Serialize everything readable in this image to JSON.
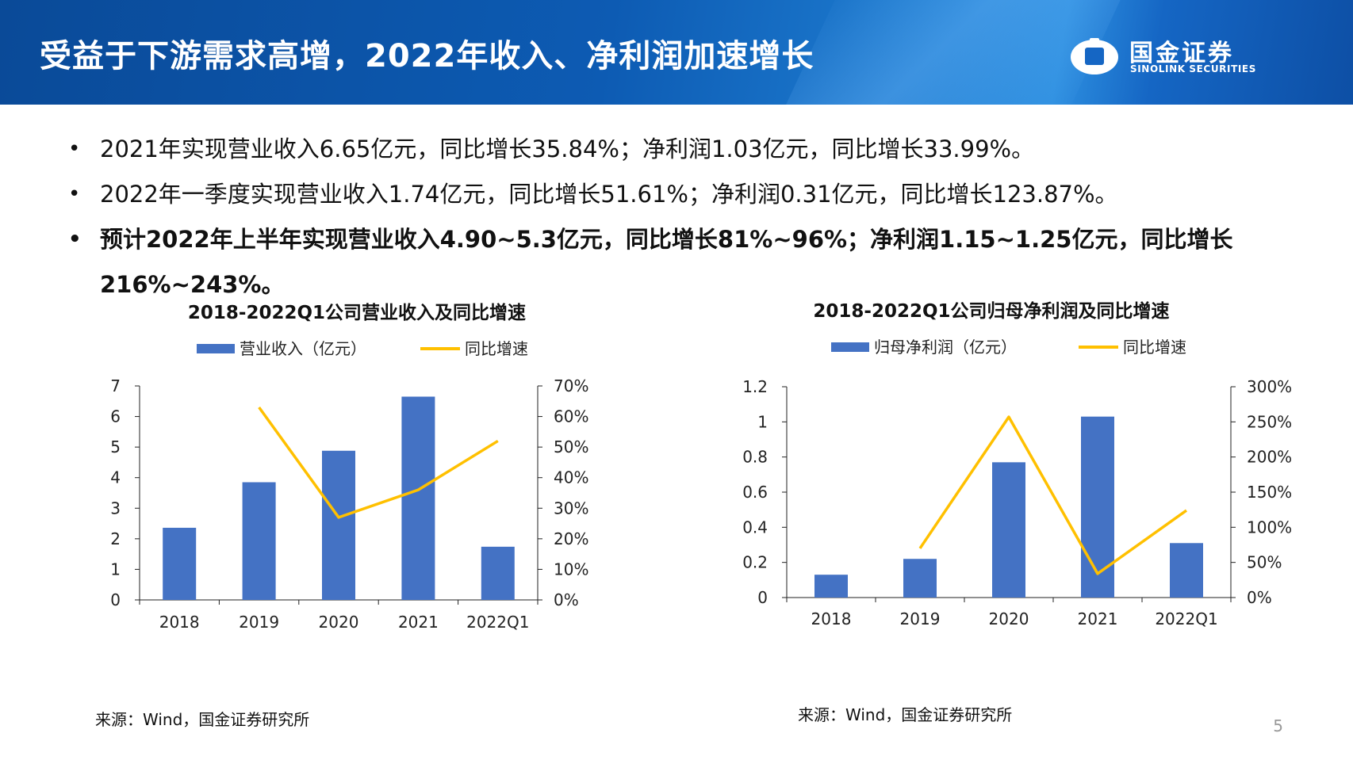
{
  "header": {
    "title": "受益于下游需求高增，2022年收入、净利润加速增长",
    "logo_cn": "国金证券",
    "logo_en": "SINOLINK SECURITIES",
    "colors": {
      "bg": "#0d5bb3",
      "text": "#ffffff"
    }
  },
  "bullets": [
    {
      "text": "2021年实现营业收入6.65亿元，同比增长35.84%；净利润1.03亿元，同比增长33.99%。",
      "bold": false
    },
    {
      "text": "2022年一季度实现营业收入1.74亿元，同比增长51.61%；净利润0.31亿元，同比增长123.87%。",
      "bold": false
    },
    {
      "text": "预计2022年上半年实现营业收入4.90~5.3亿元，同比增长81%~96%；净利润1.15~1.25亿元，同比增长216%~243%。",
      "bold": true
    }
  ],
  "colors": {
    "bar": "#4472c4",
    "line": "#ffc000",
    "axis": "#222222"
  },
  "chart_data": [
    {
      "type": "bar",
      "title": "2018-2022Q1公司营业收入及同比增速",
      "categories": [
        "2018",
        "2019",
        "2020",
        "2021",
        "2022Q1"
      ],
      "series": [
        {
          "name": "营业收入（亿元）",
          "type": "bar",
          "axis": "left",
          "values": [
            2.36,
            3.85,
            4.88,
            6.65,
            1.74
          ]
        },
        {
          "name": "同比增速",
          "type": "line",
          "axis": "right",
          "values": [
            null,
            0.63,
            0.27,
            0.36,
            0.52
          ]
        }
      ],
      "ylim": [
        0,
        7
      ],
      "yticks": [
        0,
        1,
        2,
        3,
        4,
        5,
        6,
        7
      ],
      "ytick_labels": [
        "0",
        "1",
        "2",
        "3",
        "4",
        "5",
        "6",
        "7"
      ],
      "y2lim": [
        0,
        0.7
      ],
      "y2ticks": [
        0,
        0.1,
        0.2,
        0.3,
        0.4,
        0.5,
        0.6,
        0.7
      ],
      "y2tick_labels": [
        "0%",
        "10%",
        "20%",
        "30%",
        "40%",
        "50%",
        "60%",
        "70%"
      ],
      "legend_position": "top",
      "source": "来源：Wind，国金证券研究所"
    },
    {
      "type": "bar",
      "title": "2018-2022Q1公司归母净利润及同比增速",
      "categories": [
        "2018",
        "2019",
        "2020",
        "2021",
        "2022Q1"
      ],
      "series": [
        {
          "name": "归母净利润（亿元）",
          "type": "bar",
          "axis": "left",
          "values": [
            0.13,
            0.22,
            0.77,
            1.03,
            0.31
          ]
        },
        {
          "name": "同比增速",
          "type": "line",
          "axis": "right",
          "values": [
            null,
            0.7,
            2.57,
            0.34,
            1.24
          ]
        }
      ],
      "ylim": [
        0,
        1.2
      ],
      "yticks": [
        0,
        0.2,
        0.4,
        0.6,
        0.8,
        1,
        1.2
      ],
      "ytick_labels": [
        "0",
        "0.2",
        "0.4",
        "0.6",
        "0.8",
        "1",
        "1.2"
      ],
      "y2lim": [
        0,
        3
      ],
      "y2ticks": [
        0,
        0.5,
        1,
        1.5,
        2,
        2.5,
        3
      ],
      "y2tick_labels": [
        "0%",
        "50%",
        "100%",
        "150%",
        "200%",
        "250%",
        "300%"
      ],
      "legend_position": "top",
      "source": "来源：Wind，国金证券研究所"
    }
  ],
  "page_number": "5"
}
